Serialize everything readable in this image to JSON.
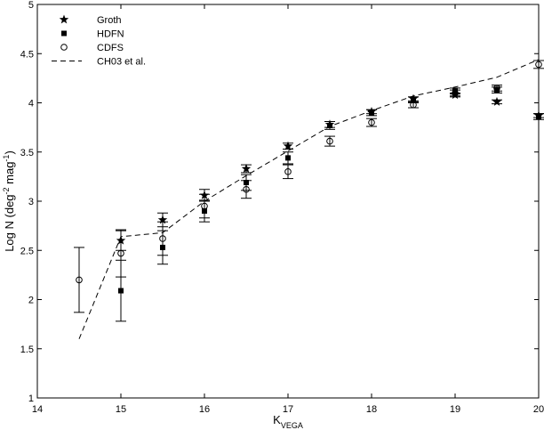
{
  "chart_data": {
    "type": "scatter",
    "title": "",
    "xlabel": "K",
    "xlabel_sub": "VEGA",
    "ylabel": "Log N (deg",
    "ylabel_sup1": "-2",
    "ylabel_mid": " mag",
    "ylabel_sup2": "-1",
    "ylabel_end": ")",
    "xlim": [
      14,
      20
    ],
    "ylim": [
      1,
      5
    ],
    "xticks": [
      "14",
      "15",
      "16",
      "17",
      "18",
      "19",
      "20"
    ],
    "yticks": [
      "1",
      "1.5",
      "2",
      "2.5",
      "3",
      "3.5",
      "4",
      "4.5",
      "5"
    ],
    "grid": false,
    "legend_position": "top-left",
    "series": [
      {
        "name": "Groth",
        "marker": "star",
        "points": [
          {
            "x": 15.0,
            "y": 2.6,
            "err": 0.1
          },
          {
            "x": 15.5,
            "y": 2.81,
            "err": 0.07
          },
          {
            "x": 16.0,
            "y": 3.06,
            "err": 0.06
          },
          {
            "x": 16.5,
            "y": 3.33,
            "err": 0.04
          },
          {
            "x": 17.0,
            "y": 3.56,
            "err": 0.03
          },
          {
            "x": 17.5,
            "y": 3.78,
            "err": 0.03
          },
          {
            "x": 18.0,
            "y": 3.91,
            "err": 0.02
          },
          {
            "x": 18.5,
            "y": 4.04,
            "err": 0.02
          },
          {
            "x": 19.0,
            "y": 4.08,
            "err": 0.02
          },
          {
            "x": 19.5,
            "y": 4.01,
            "err": 0.02
          },
          {
            "x": 20.0,
            "y": 3.87,
            "err": 0.02
          }
        ]
      },
      {
        "name": "HDFN",
        "marker": "square",
        "points": [
          {
            "x": 15.0,
            "y": 2.09,
            "err": 0.31
          },
          {
            "x": 15.5,
            "y": 2.53,
            "err": 0.17
          },
          {
            "x": 16.0,
            "y": 2.9,
            "err": 0.11
          },
          {
            "x": 16.5,
            "y": 3.19,
            "err": 0.08
          },
          {
            "x": 17.0,
            "y": 3.44,
            "err": 0.06
          },
          {
            "x": 17.5,
            "y": 3.77,
            "err": 0.04
          },
          {
            "x": 18.0,
            "y": 3.9,
            "err": 0.03
          },
          {
            "x": 18.5,
            "y": 4.03,
            "err": 0.03
          },
          {
            "x": 19.0,
            "y": 4.12,
            "err": 0.03
          },
          {
            "x": 19.5,
            "y": 4.13,
            "err": 0.03
          },
          {
            "x": 20.0,
            "y": 3.86,
            "err": 0.03
          }
        ]
      },
      {
        "name": "CDFS",
        "marker": "circle",
        "points": [
          {
            "x": 14.5,
            "y": 2.2,
            "err": 0.33
          },
          {
            "x": 15.0,
            "y": 2.47,
            "err": 0.24
          },
          {
            "x": 15.5,
            "y": 2.62,
            "err": 0.17
          },
          {
            "x": 16.0,
            "y": 2.95,
            "err": 0.12
          },
          {
            "x": 16.5,
            "y": 3.12,
            "err": 0.09
          },
          {
            "x": 17.0,
            "y": 3.3,
            "err": 0.07
          },
          {
            "x": 17.5,
            "y": 3.61,
            "err": 0.05
          },
          {
            "x": 18.0,
            "y": 3.8,
            "err": 0.04
          },
          {
            "x": 18.5,
            "y": 3.98,
            "err": 0.03
          },
          {
            "x": 19.0,
            "y": 4.1,
            "err": 0.03
          },
          {
            "x": 19.5,
            "y": 4.15,
            "err": 0.03
          },
          {
            "x": 20.0,
            "y": 4.39,
            "err": 0.04
          }
        ]
      },
      {
        "name": "CH03 et al.",
        "marker": "dashed-line",
        "points": [
          {
            "x": 14.5,
            "y": 1.6
          },
          {
            "x": 15.0,
            "y": 2.64
          },
          {
            "x": 15.5,
            "y": 2.68
          },
          {
            "x": 16.0,
            "y": 3.0
          },
          {
            "x": 16.5,
            "y": 3.26
          },
          {
            "x": 17.0,
            "y": 3.51
          },
          {
            "x": 17.5,
            "y": 3.76
          },
          {
            "x": 18.0,
            "y": 3.92
          },
          {
            "x": 18.5,
            "y": 4.07
          },
          {
            "x": 19.0,
            "y": 4.16
          },
          {
            "x": 19.5,
            "y": 4.26
          },
          {
            "x": 20.0,
            "y": 4.44
          }
        ]
      }
    ]
  }
}
